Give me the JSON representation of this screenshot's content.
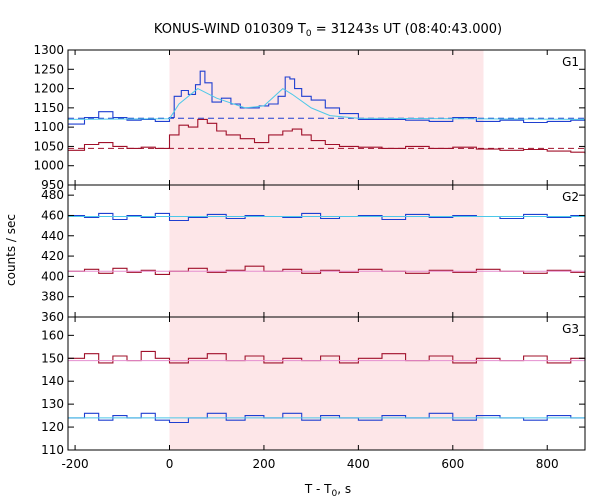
{
  "chart_data": {
    "type": "line",
    "title_main": "KONUS-WIND 010309 T",
    "title_sub": "0",
    "title_rest": " = 31243s UT (08:40:43.000)",
    "xlabel_main": "T - T",
    "xlabel_sub": "0",
    "xlabel_rest": ", s",
    "ylabel": "counts / sec",
    "xlim": [
      -215,
      880
    ],
    "x_ticks": [
      -200,
      0,
      200,
      400,
      600,
      800
    ],
    "x_tick_labels": [
      "-200",
      "0",
      "200",
      "400",
      "600",
      "800"
    ],
    "shaded_interval": [
      0,
      665
    ],
    "colors": {
      "blue": "#1f3fd0",
      "red": "#a0102a",
      "cyan": "#4cc8e8",
      "pink": "#e58fd0",
      "shade": "#fde6e8"
    },
    "panels": [
      {
        "label": "G1",
        "ylim": [
          950,
          1300
        ],
        "y_ticks": [
          950,
          1000,
          1050,
          1100,
          1150,
          1200,
          1250,
          1300
        ],
        "y_tick_labels": [
          "950",
          "1000",
          "1050",
          "1100",
          "1150",
          "1200",
          "1250",
          "1300"
        ],
        "baselines": [
          {
            "series": "upper",
            "value": 1123
          },
          {
            "series": "lower",
            "value": 1045
          }
        ],
        "series": [
          {
            "role": "upper",
            "color_key": "blue",
            "fit_color_key": "cyan",
            "x": [
              -215,
              -180,
              -150,
              -120,
              -90,
              -60,
              -30,
              0,
              10,
              25,
              40,
              55,
              65,
              75,
              90,
              110,
              130,
              150,
              170,
              190,
              210,
              230,
              245,
              255,
              265,
              280,
              300,
              330,
              360,
              400,
              450,
              500,
              550,
              600,
              650,
              700,
              750,
              800,
              850,
              880
            ],
            "values": [
              1108,
              1125,
              1140,
              1125,
              1118,
              1120,
              1115,
              1125,
              1180,
              1195,
              1185,
              1210,
              1245,
              1215,
              1165,
              1175,
              1160,
              1150,
              1150,
              1155,
              1160,
              1180,
              1230,
              1225,
              1200,
              1180,
              1170,
              1150,
              1135,
              1120,
              1120,
              1118,
              1115,
              1125,
              1115,
              1118,
              1112,
              1115,
              1118,
              1120
            ],
            "fit_x": [
              -215,
              0,
              20,
              60,
              100,
              160,
              200,
              240,
              260,
              300,
              340,
              400,
              880
            ],
            "fit_values": [
              1120,
              1122,
              1160,
              1200,
              1175,
              1150,
              1155,
              1200,
              1185,
              1150,
              1130,
              1123,
              1120
            ]
          },
          {
            "role": "lower",
            "color_key": "red",
            "x": [
              -215,
              -180,
              -150,
              -120,
              -90,
              -60,
              -30,
              0,
              20,
              40,
              60,
              80,
              100,
              120,
              150,
              180,
              210,
              240,
              260,
              280,
              300,
              330,
              360,
              400,
              450,
              500,
              550,
              600,
              650,
              700,
              750,
              800,
              850,
              880
            ],
            "values": [
              1040,
              1055,
              1060,
              1050,
              1045,
              1048,
              1045,
              1080,
              1105,
              1100,
              1120,
              1110,
              1090,
              1080,
              1070,
              1060,
              1080,
              1090,
              1095,
              1080,
              1065,
              1055,
              1050,
              1048,
              1045,
              1050,
              1045,
              1048,
              1043,
              1040,
              1042,
              1038,
              1035,
              1030
            ]
          }
        ]
      },
      {
        "label": "G2",
        "ylim": [
          360,
          490
        ],
        "y_ticks": [
          360,
          380,
          400,
          420,
          440,
          460,
          480
        ],
        "y_tick_labels": [
          "360",
          "380",
          "400",
          "420",
          "440",
          "460",
          "480"
        ],
        "series": [
          {
            "role": "upper",
            "color_key": "blue",
            "fit_color_key": "cyan",
            "x": [
              -215,
              -180,
              -150,
              -120,
              -90,
              -60,
              -30,
              0,
              40,
              80,
              120,
              160,
              200,
              240,
              280,
              320,
              360,
              400,
              450,
              500,
              550,
              600,
              650,
              700,
              750,
              800,
              850,
              880
            ],
            "values": [
              460,
              458,
              462,
              456,
              460,
              458,
              462,
              455,
              458,
              461,
              457,
              460,
              459,
              458,
              462,
              457,
              459,
              460,
              456,
              461,
              458,
              460,
              459,
              457,
              461,
              458,
              460,
              459
            ],
            "fit_x": [
              -215,
              880
            ],
            "fit_values": [
              459,
              459
            ]
          },
          {
            "role": "lower",
            "color_key": "red",
            "fit_color_key": "pink",
            "x": [
              -215,
              -180,
              -150,
              -120,
              -90,
              -60,
              -30,
              0,
              40,
              80,
              120,
              160,
              200,
              240,
              280,
              320,
              360,
              400,
              450,
              500,
              550,
              600,
              650,
              700,
              750,
              800,
              850,
              880
            ],
            "values": [
              405,
              407,
              403,
              408,
              404,
              406,
              402,
              405,
              408,
              404,
              406,
              410,
              405,
              407,
              403,
              406,
              404,
              407,
              405,
              403,
              406,
              404,
              407,
              405,
              403,
              406,
              404,
              405
            ],
            "fit_x": [
              -215,
              880
            ],
            "fit_values": [
              405,
              405
            ]
          }
        ]
      },
      {
        "label": "G3",
        "ylim": [
          110,
          168
        ],
        "y_ticks": [
          110,
          120,
          130,
          140,
          150,
          160
        ],
        "y_tick_labels": [
          "110",
          "120",
          "130",
          "140",
          "150",
          "160"
        ],
        "series": [
          {
            "role": "upper",
            "color_key": "red",
            "fit_color_key": "pink",
            "x": [
              -215,
              -180,
              -150,
              -120,
              -90,
              -60,
              -30,
              0,
              40,
              80,
              120,
              160,
              200,
              240,
              280,
              320,
              360,
              400,
              450,
              500,
              550,
              600,
              650,
              700,
              750,
              800,
              850,
              880
            ],
            "values": [
              150,
              152,
              148,
              151,
              149,
              153,
              150,
              148,
              150,
              152,
              149,
              151,
              148,
              150,
              149,
              151,
              148,
              150,
              152,
              149,
              151,
              148,
              150,
              149,
              151,
              148,
              150,
              149
            ],
            "fit_x": [
              -215,
              880
            ],
            "fit_values": [
              149,
              149
            ]
          },
          {
            "role": "lower",
            "color_key": "blue",
            "fit_color_key": "cyan",
            "x": [
              -215,
              -180,
              -150,
              -120,
              -90,
              -60,
              -30,
              0,
              40,
              80,
              120,
              160,
              200,
              240,
              280,
              320,
              360,
              400,
              450,
              500,
              550,
              600,
              650,
              700,
              750,
              800,
              850,
              880
            ],
            "values": [
              124,
              126,
              123,
              125,
              124,
              126,
              123,
              122,
              124,
              126,
              123,
              125,
              124,
              126,
              123,
              125,
              124,
              123,
              125,
              124,
              126,
              123,
              125,
              124,
              123,
              125,
              124,
              124
            ],
            "fit_x": [
              -215,
              880
            ],
            "fit_values": [
              124,
              124
            ]
          }
        ]
      }
    ]
  }
}
